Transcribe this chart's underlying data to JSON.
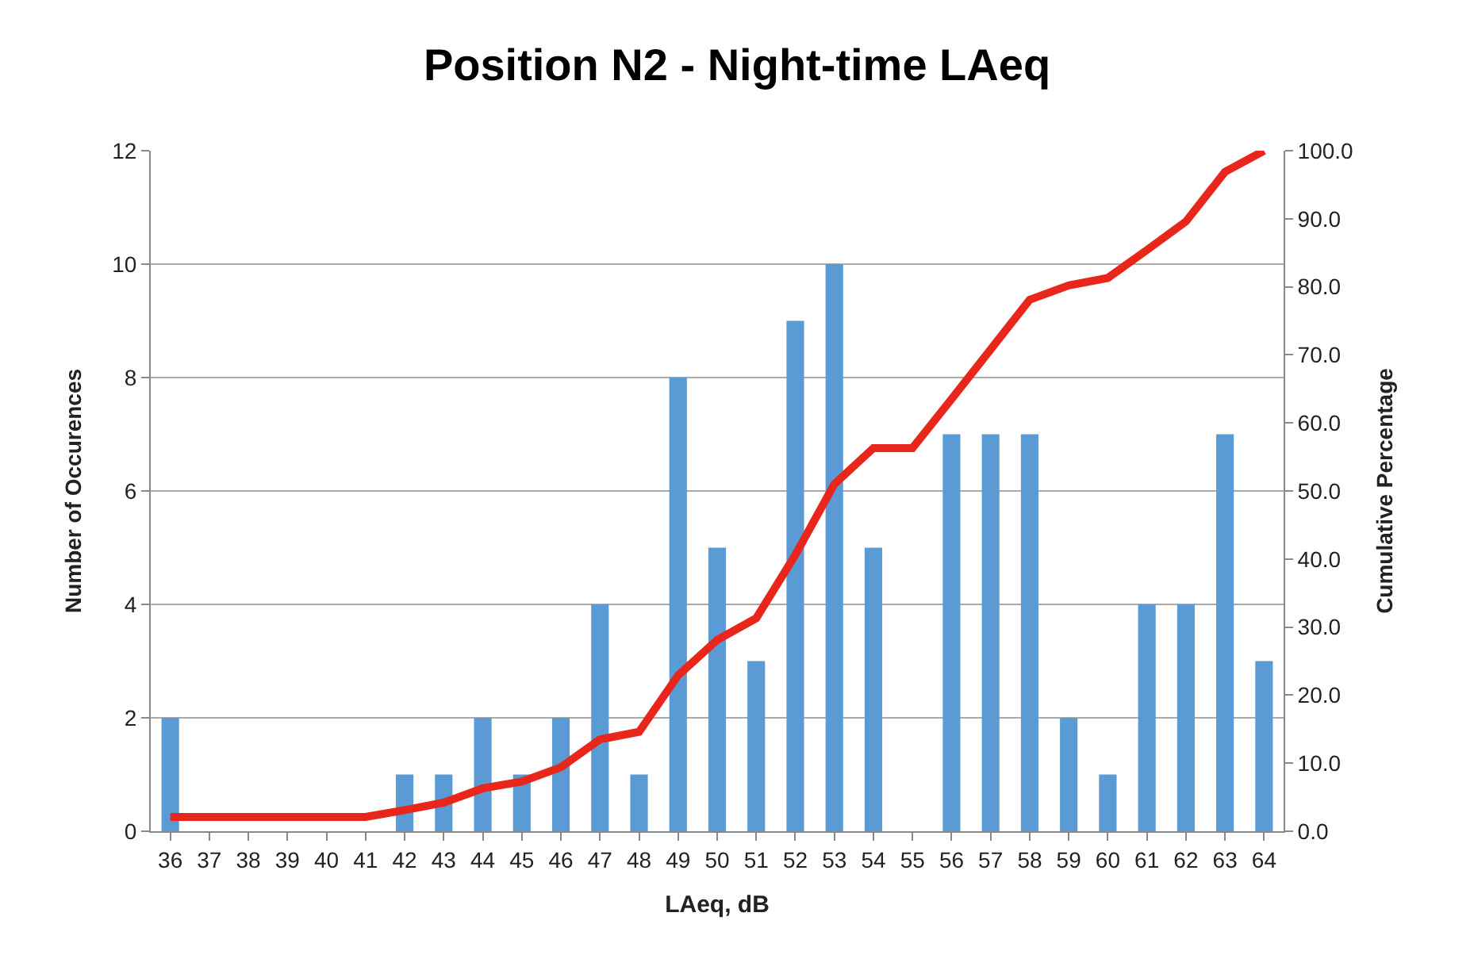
{
  "chart_data": {
    "type": "bar",
    "title": "Position N2 - Night-time LAeq",
    "xlabel": "LAeq, dB",
    "ylabel": "Number of Occurences",
    "y2label": "Cumulative Percentage",
    "categories": [
      "36",
      "37",
      "38",
      "39",
      "40",
      "41",
      "42",
      "43",
      "44",
      "45",
      "46",
      "47",
      "48",
      "49",
      "50",
      "51",
      "52",
      "53",
      "54",
      "55",
      "56",
      "57",
      "58",
      "59",
      "60",
      "61",
      "62",
      "63",
      "64"
    ],
    "series": [
      {
        "color": "#5b9bd5",
        "values": [
          2,
          0,
          0,
          0,
          0,
          0,
          1,
          1,
          2,
          1,
          2,
          4,
          1,
          8,
          5,
          3,
          9,
          10,
          5,
          0,
          7,
          7,
          7,
          2,
          1,
          4,
          4,
          7,
          3
        ]
      },
      {
        "type": "line",
        "axis": "y2",
        "color": "#e8261c",
        "values": [
          2.1,
          2.1,
          2.1,
          2.1,
          2.1,
          2.1,
          3.1,
          4.2,
          6.3,
          7.3,
          9.4,
          13.5,
          14.6,
          22.9,
          28.1,
          31.3,
          40.6,
          51.0,
          56.3,
          56.3,
          63.5,
          70.8,
          78.1,
          80.2,
          81.3,
          85.4,
          89.6,
          96.9,
          100.0
        ]
      }
    ],
    "ylim": [
      0,
      12
    ],
    "yticks": [
      0,
      2,
      4,
      6,
      8,
      10,
      12
    ],
    "y2lim": [
      0,
      100
    ],
    "y2ticks": [
      {
        "value": 0,
        "label": "0.0"
      },
      {
        "value": 10,
        "label": "10.0"
      },
      {
        "value": 20,
        "label": "20.0"
      },
      {
        "value": 30,
        "label": "30.0"
      },
      {
        "value": 40,
        "label": "40.0"
      },
      {
        "value": 50,
        "label": "50.0"
      },
      {
        "value": 60,
        "label": "60.0"
      },
      {
        "value": 70,
        "label": "70.0"
      },
      {
        "value": 80,
        "label": "80.0"
      },
      {
        "value": 90,
        "label": "90.0"
      },
      {
        "value": 100,
        "label": "100.0"
      }
    ],
    "grid": "y",
    "legend": false,
    "marker": "none",
    "line_style": "solid"
  }
}
